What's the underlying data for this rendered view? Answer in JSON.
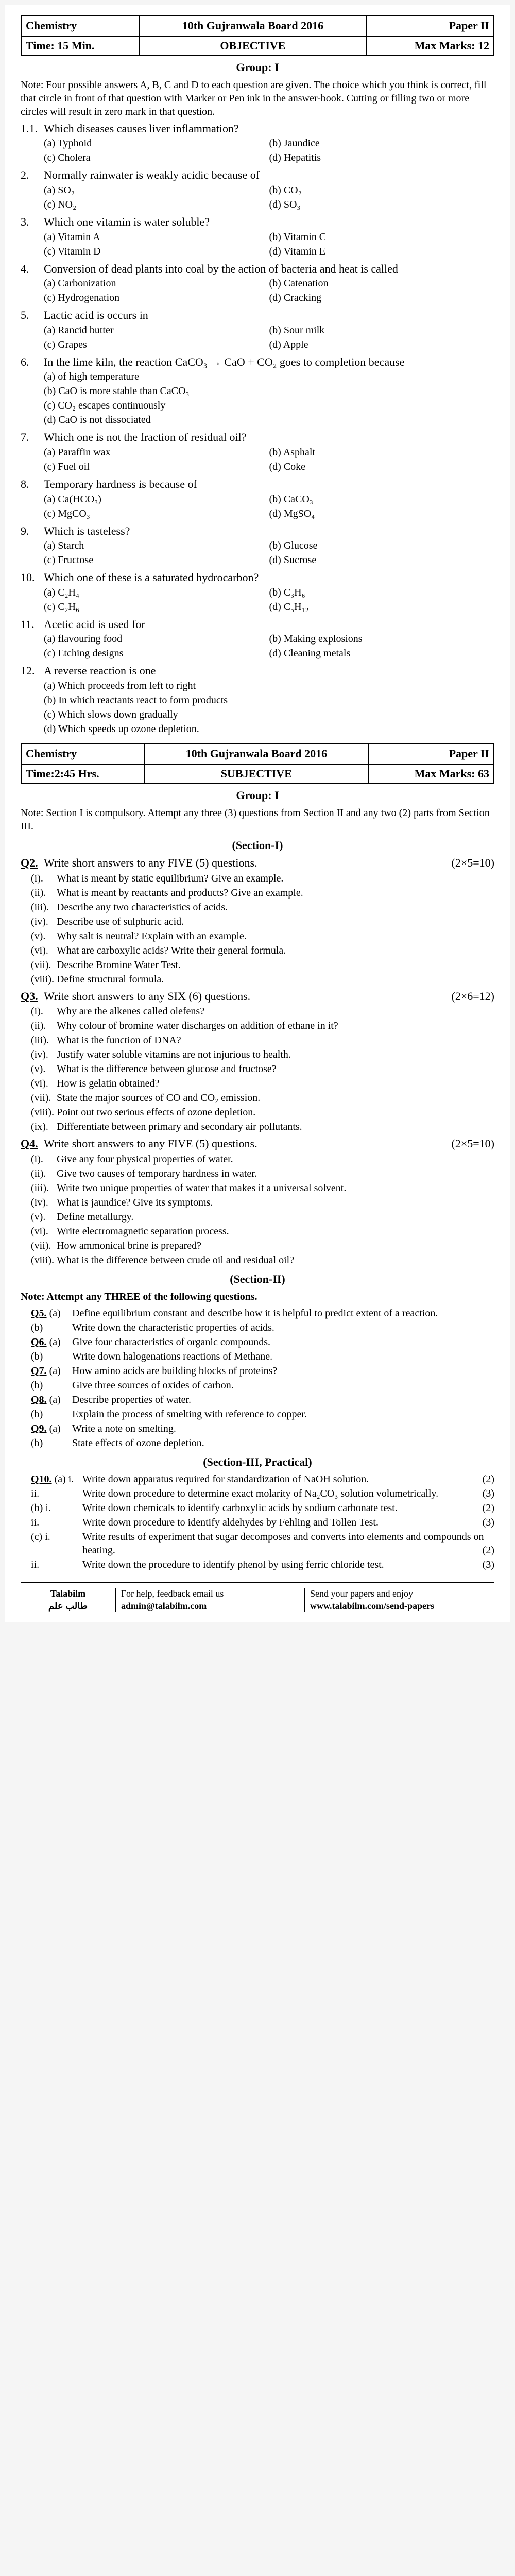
{
  "header1": {
    "subject": "Chemistry",
    "board": "10th Gujranwala Board 2016",
    "paper": "Paper II",
    "time": "Time: 15 Min.",
    "type": "OBJECTIVE",
    "marks": "Max Marks: 12"
  },
  "group": "Group: I",
  "note1": "Note: Four possible answers A, B, C and D to each question are given. The choice which you think is correct, fill that circle in front of that question with Marker or Pen ink in the answer-book. Cutting or filling two or more circles will result in zero mark in that question.",
  "mcqs": [
    {
      "n": "1.1.",
      "q": "Which diseases causes liver inflammation?",
      "o": [
        "(a)   Typhoid",
        "(b)   Jaundice",
        "(c)   Cholera",
        "(d)   Hepatitis"
      ]
    },
    {
      "n": "2.",
      "q": "Normally rainwater is weakly acidic because of",
      "o": [
        "(a)   SO₂",
        "(b)   CO₂",
        "(c)   NO₂",
        "(d)   SO₃"
      ]
    },
    {
      "n": "3.",
      "q": "Which one vitamin is water soluble?",
      "o": [
        "(a)   Vitamin A",
        "(b)   Vitamin C",
        "(c)   Vitamin D",
        "(d)   Vitamin E"
      ]
    },
    {
      "n": "4.",
      "q": "Conversion of dead plants into coal by the action of bacteria and heat is called",
      "o": [
        "(a)   Carbonization",
        "(b)   Catenation",
        "(c)   Hydrogenation",
        "(d)   Cracking"
      ]
    },
    {
      "n": "5.",
      "q": "Lactic acid is occurs in",
      "o": [
        "(a)   Rancid butter",
        "(b)   Sour milk",
        "(c)   Grapes",
        "(d)   Apple"
      ]
    },
    {
      "n": "6.",
      "q": "In the lime kiln, the reaction CaCO₃ → CaO + CO₂ goes to completion because",
      "o": [
        "(a)   of high temperature",
        "",
        "(b)   CaO is more stable than CaCO₃",
        "",
        "(c)   CO₂ escapes continuously",
        "",
        "(d)   CaO is not dissociated",
        ""
      ]
    },
    {
      "n": "7.",
      "q": "Which one is not the fraction of residual oil?",
      "o": [
        "(a)   Paraffin wax",
        "(b)   Asphalt",
        "(c)   Fuel oil",
        "(d)   Coke"
      ]
    },
    {
      "n": "8.",
      "q": "Temporary hardness is because of",
      "o": [
        "(a)   Ca(HCO₃)",
        "(b)   CaCO₃",
        "(c)   MgCO₃",
        "(d)   MgSO₄"
      ]
    },
    {
      "n": "9.",
      "q": "Which is tasteless?",
      "o": [
        "(a)   Starch",
        "(b)   Glucose",
        "(c)   Fructose",
        "(d)   Sucrose"
      ]
    },
    {
      "n": "10.",
      "q": "Which one of these is a saturated hydrocarbon?",
      "o": [
        "(a)   C₂H₄",
        "(b)   C₃H₆",
        "(c)   C₂H₆",
        "(d)   C₅H₁₂"
      ]
    },
    {
      "n": "11.",
      "q": "Acetic acid is used for",
      "o": [
        "(a)   flavouring food",
        "(b)   Making explosions",
        "(c)   Etching designs",
        "(d)   Cleaning metals"
      ]
    },
    {
      "n": "12.",
      "q": "A reverse reaction is one",
      "o": [
        "(a)   Which proceeds from left to right",
        "",
        "(b)   In which reactants react to form products",
        "",
        "(c)   Which slows down gradually",
        "",
        "(d)   Which speeds up ozone depletion.",
        ""
      ]
    }
  ],
  "header2": {
    "subject": "Chemistry",
    "board": "10th Gujranwala Board 2016",
    "paper": "Paper II",
    "time": "Time:2:45 Hrs.",
    "type": "SUBJECTIVE",
    "marks": "Max Marks: 63"
  },
  "note2": "Note: Section I is compulsory. Attempt any three (3) questions from Section II and any two (2) parts from Section III.",
  "sec1": "(Section-I)",
  "q2": {
    "title": "Q2.",
    "inst": "Write short answers to any FIVE (5) questions.",
    "marks": "(2×5=10)",
    "items": [
      {
        "n": "(i).",
        "t": "What is meant by static equilibrium? Give an example."
      },
      {
        "n": "(ii).",
        "t": "What is meant by reactants and products? Give an example."
      },
      {
        "n": "(iii).",
        "t": "Describe any two characteristics of acids."
      },
      {
        "n": "(iv).",
        "t": "Describe use of sulphuric acid."
      },
      {
        "n": "(v).",
        "t": "Why salt is neutral? Explain with an example."
      },
      {
        "n": "(vi).",
        "t": "What are carboxylic acids? Write their general formula."
      },
      {
        "n": "(vii).",
        "t": "Describe Bromine Water Test."
      },
      {
        "n": "(viii).",
        "t": "Define structural formula."
      }
    ]
  },
  "q3": {
    "title": "Q3.",
    "inst": "Write short answers to any SIX (6) questions.",
    "marks": "(2×6=12)",
    "items": [
      {
        "n": "(i).",
        "t": "Why are the alkenes called olefens?"
      },
      {
        "n": "(ii).",
        "t": "Why colour of bromine water discharges on addition of ethane in it?"
      },
      {
        "n": "(iii).",
        "t": "What is the function of DNA?"
      },
      {
        "n": "(iv).",
        "t": "Justify water soluble vitamins are not injurious to health."
      },
      {
        "n": "(v).",
        "t": "What is the difference between glucose and fructose?"
      },
      {
        "n": "(vi).",
        "t": "How is gelatin obtained?"
      },
      {
        "n": "(vii).",
        "t": "State the major sources of CO and CO₂ emission."
      },
      {
        "n": "(viii).",
        "t": "Point out two serious effects of ozone depletion."
      },
      {
        "n": "(ix).",
        "t": "Differentiate between primary and secondary air pollutants."
      }
    ]
  },
  "q4": {
    "title": "Q4.",
    "inst": "Write short answers to any FIVE (5) questions.",
    "marks": "(2×5=10)",
    "items": [
      {
        "n": "(i).",
        "t": "Give any four physical properties of water."
      },
      {
        "n": "(ii).",
        "t": "Give two causes of temporary hardness in water."
      },
      {
        "n": "(iii).",
        "t": "Write two unique properties of water that makes it a universal solvent."
      },
      {
        "n": "(iv).",
        "t": "What is jaundice? Give its symptoms."
      },
      {
        "n": "(v).",
        "t": "Define metallurgy."
      },
      {
        "n": "(vi).",
        "t": "Write electromagnetic separation process."
      },
      {
        "n": "(vii).",
        "t": "How ammonical brine is prepared?"
      },
      {
        "n": "(viii).",
        "t": "What is the difference between crude oil and residual oil?"
      }
    ]
  },
  "sec2": "(Section-II)",
  "note3": "Note: Attempt any THREE of the following questions.",
  "lq": [
    {
      "n": "Q5.",
      "items": [
        {
          "n": "(a)",
          "t": "Define equilibrium constant and describe how it is helpful to predict extent of a reaction."
        },
        {
          "n": "(b)",
          "t": "Write down the characteristic properties of acids."
        }
      ]
    },
    {
      "n": "Q6.",
      "items": [
        {
          "n": "(a)",
          "t": "Give four characteristics of organic compounds."
        },
        {
          "n": "(b)",
          "t": "Write down halogenations reactions of Methane."
        }
      ]
    },
    {
      "n": "Q7.",
      "items": [
        {
          "n": "(a)",
          "t": "How amino acids are building blocks of proteins?"
        },
        {
          "n": "(b)",
          "t": "Give three sources of oxides of carbon."
        }
      ]
    },
    {
      "n": "Q8.",
      "items": [
        {
          "n": "(a)",
          "t": "Describe properties of water."
        },
        {
          "n": "(b)",
          "t": "Explain the process of smelting with reference to copper."
        }
      ]
    },
    {
      "n": "Q9.",
      "items": [
        {
          "n": "(a)",
          "t": "Write a note on smelting."
        },
        {
          "n": "(b)",
          "t": "State effects of ozone depletion."
        }
      ]
    }
  ],
  "sec3": "(Section-III, Practical)",
  "q10": {
    "n": "Q10.",
    "items": [
      {
        "n": "(a)",
        "sub": [
          {
            "n": "i.",
            "t": "Write down apparatus required for standardization of NaOH solution.",
            "m": "(2)"
          },
          {
            "n": "ii.",
            "t": "Write down procedure to determine exact molarity of Na₂CO₃ solution volumetrically.",
            "m": "(3)"
          }
        ]
      },
      {
        "n": "(b)",
        "sub": [
          {
            "n": "i.",
            "t": "Write down chemicals to identify carboxylic acids by sodium carbonate test.",
            "m": "(2)"
          },
          {
            "n": "ii.",
            "t": "Write down procedure to identify aldehydes by Fehling and Tollen Test.",
            "m": "(3)"
          }
        ]
      },
      {
        "n": "(c)",
        "sub": [
          {
            "n": "i.",
            "t": "Write results of experiment that sugar decomposes and converts into elements and compounds on heating.",
            "m": "(2)"
          },
          {
            "n": "ii.",
            "t": "Write down the procedure to identify phenol by using ferric chloride test.",
            "m": "(3)"
          }
        ]
      }
    ]
  },
  "footer": {
    "brand": "Talabilm",
    "brand_ar": "طالب علم",
    "help": "For help, feedback email us",
    "email": "admin@talabilm.com",
    "send": "Send your papers and enjoy",
    "url": "www.talabilm.com/send-papers"
  }
}
